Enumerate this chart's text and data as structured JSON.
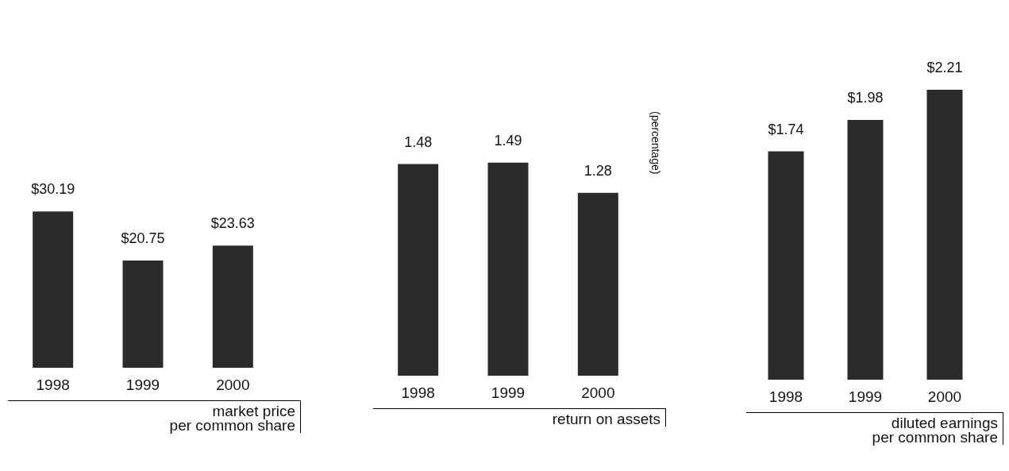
{
  "chart_data": [
    {
      "type": "bar",
      "xlabel": "market price\nper common share",
      "categories": [
        "1998",
        "1999",
        "2000"
      ],
      "values": [
        30.19,
        20.75,
        23.63
      ],
      "color": "#2b2b2b",
      "value_labels": [
        "$30.19",
        "$20.75",
        "$23.63"
      ]
    },
    {
      "type": "bar",
      "xlabel": "return on assets",
      "ylabel": "(percentage)",
      "categories": [
        "1998",
        "1999",
        "2000"
      ],
      "values": [
        1.48,
        1.49,
        1.28
      ],
      "color": "#2b2b2b",
      "value_labels": [
        "1.48",
        "1.49",
        "1.28"
      ]
    },
    {
      "type": "bar",
      "xlabel": "diluted earnings\nper common share",
      "categories": [
        "1998",
        "1999",
        "2000"
      ],
      "values": [
        1.74,
        1.98,
        2.21
      ],
      "color": "#2b2b2b",
      "value_labels": [
        "$1.74",
        "$1.98",
        "$2.21"
      ]
    }
  ]
}
